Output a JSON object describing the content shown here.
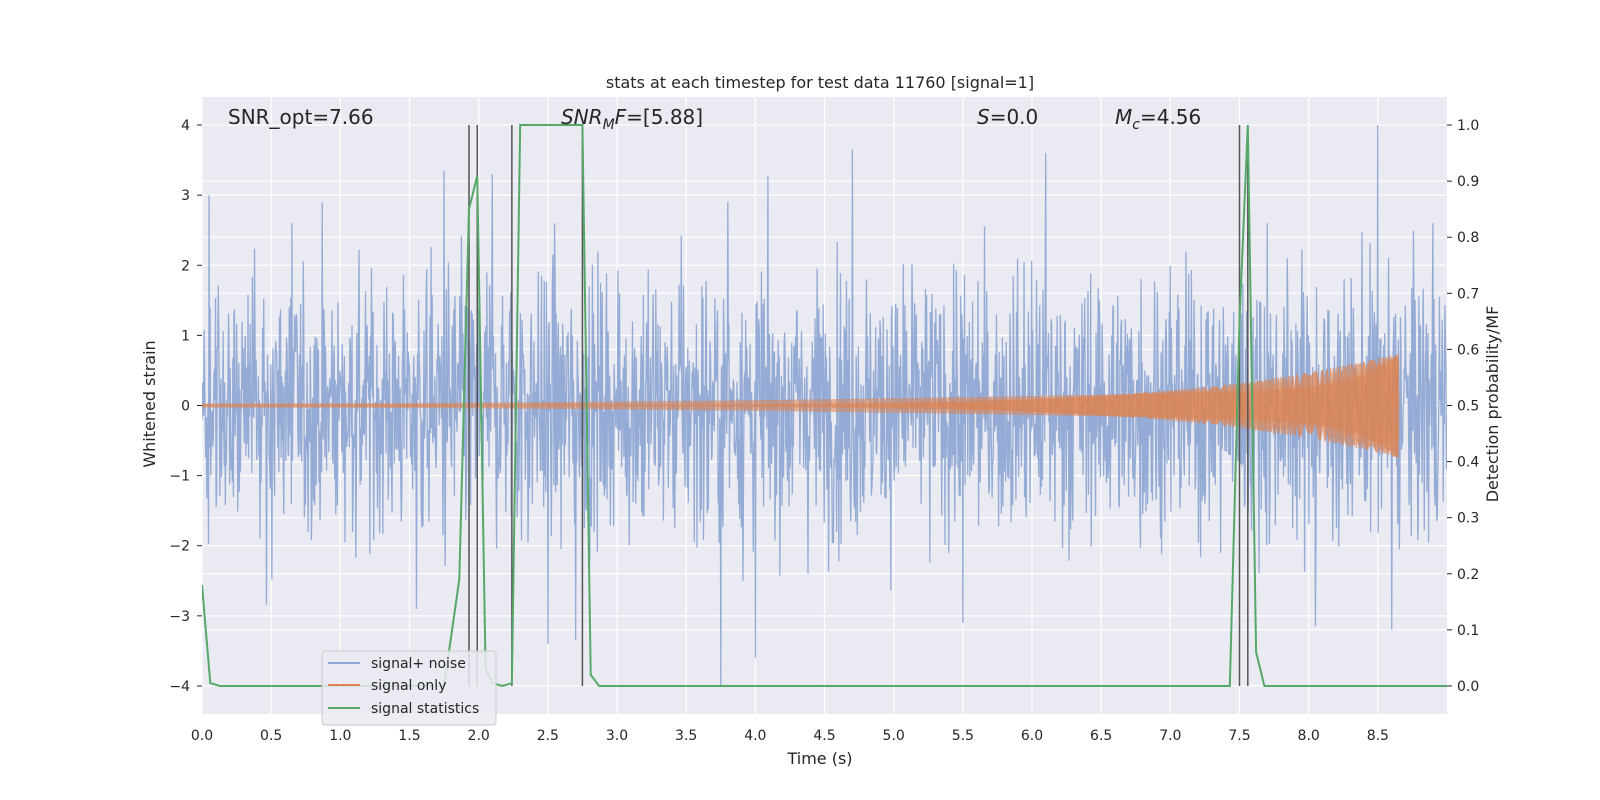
{
  "chart_data": {
    "type": "line",
    "title": "stats at each timestep for test data 11760 [signal=1]",
    "xlabel": "Time (s)",
    "ylabel_left": "Whitened strain",
    "ylabel_right": "Detection probability/MF",
    "xlim": [
      0.0,
      9.0
    ],
    "ylim_left": [
      -4.4,
      4.4
    ],
    "ylim_right": [
      -0.05,
      1.05
    ],
    "xticks": [
      "0.0",
      "0.5",
      "1.0",
      "1.5",
      "2.0",
      "2.5",
      "3.0",
      "3.5",
      "4.0",
      "4.5",
      "5.0",
      "5.5",
      "6.0",
      "6.5",
      "7.0",
      "7.5",
      "8.0",
      "8.5"
    ],
    "yticks_left": [
      "−4",
      "−3",
      "−2",
      "−1",
      "0",
      "1",
      "2",
      "3",
      "4"
    ],
    "yticks_right": [
      "0.0",
      "0.1",
      "0.2",
      "0.3",
      "0.4",
      "0.5",
      "0.6",
      "0.7",
      "0.8",
      "0.9",
      "1.0"
    ],
    "grid": true,
    "legend_position": "lower-left",
    "annotations": {
      "snr_opt": "SNR_opt=7.66",
      "snr_mf_base": "SNR",
      "snr_mf_sub": "M",
      "snr_mf_rest": "F=[5.88]",
      "s_italic": "S",
      "s_rest": "=0.0",
      "mc_base": "M",
      "mc_sub": "c",
      "mc_rest": "=4.56"
    },
    "vertical_lines_x": [
      1.93,
      1.99,
      2.24,
      2.75,
      7.5,
      7.56
    ],
    "series": [
      {
        "name": "signal+ noise",
        "color": "#8fa8d3",
        "axis": "left",
        "description_envelope": "white noise, typical amplitude ~1.6, peaks to about +/-4",
        "peaks": [
          [
            0.05,
            3.0
          ],
          [
            0.65,
            2.6
          ],
          [
            1.75,
            3.35
          ],
          [
            2.1,
            3.3
          ],
          [
            2.55,
            2.6
          ],
          [
            3.8,
            2.9
          ],
          [
            4.7,
            3.65
          ],
          [
            6.1,
            3.6
          ],
          [
            7.7,
            2.6
          ],
          [
            8.5,
            4.0
          ],
          [
            8.9,
            2.6
          ],
          [
            1.55,
            -2.9
          ],
          [
            2.5,
            -3.4
          ],
          [
            2.7,
            -3.35
          ],
          [
            3.75,
            -4.0
          ],
          [
            4.0,
            -3.6
          ],
          [
            5.5,
            -3.1
          ],
          [
            8.05,
            -3.15
          ],
          [
            8.6,
            -3.2
          ]
        ]
      },
      {
        "name": "signal only",
        "color": "#dd8452",
        "axis": "left",
        "chirp_start": 0.0,
        "chirp_end": 8.65,
        "amplitude_start": 0.01,
        "amplitude_end": 0.75
      },
      {
        "name": "signal statistics",
        "color": "#55a868",
        "axis": "right",
        "x": [
          0.0,
          0.06,
          0.13,
          1.75,
          1.86,
          1.93,
          1.99,
          2.05,
          2.1,
          2.17,
          2.24,
          2.3,
          2.75,
          2.81,
          2.87,
          7.43,
          7.5,
          7.56,
          7.62,
          7.68,
          9.0
        ],
        "y": [
          0.18,
          0.005,
          0.0,
          0.0,
          0.19,
          0.85,
          0.91,
          0.03,
          0.005,
          0.0,
          0.005,
          1.0,
          1.0,
          0.02,
          0.0,
          0.0,
          0.65,
          1.0,
          0.06,
          0.0,
          0.0
        ]
      }
    ]
  }
}
